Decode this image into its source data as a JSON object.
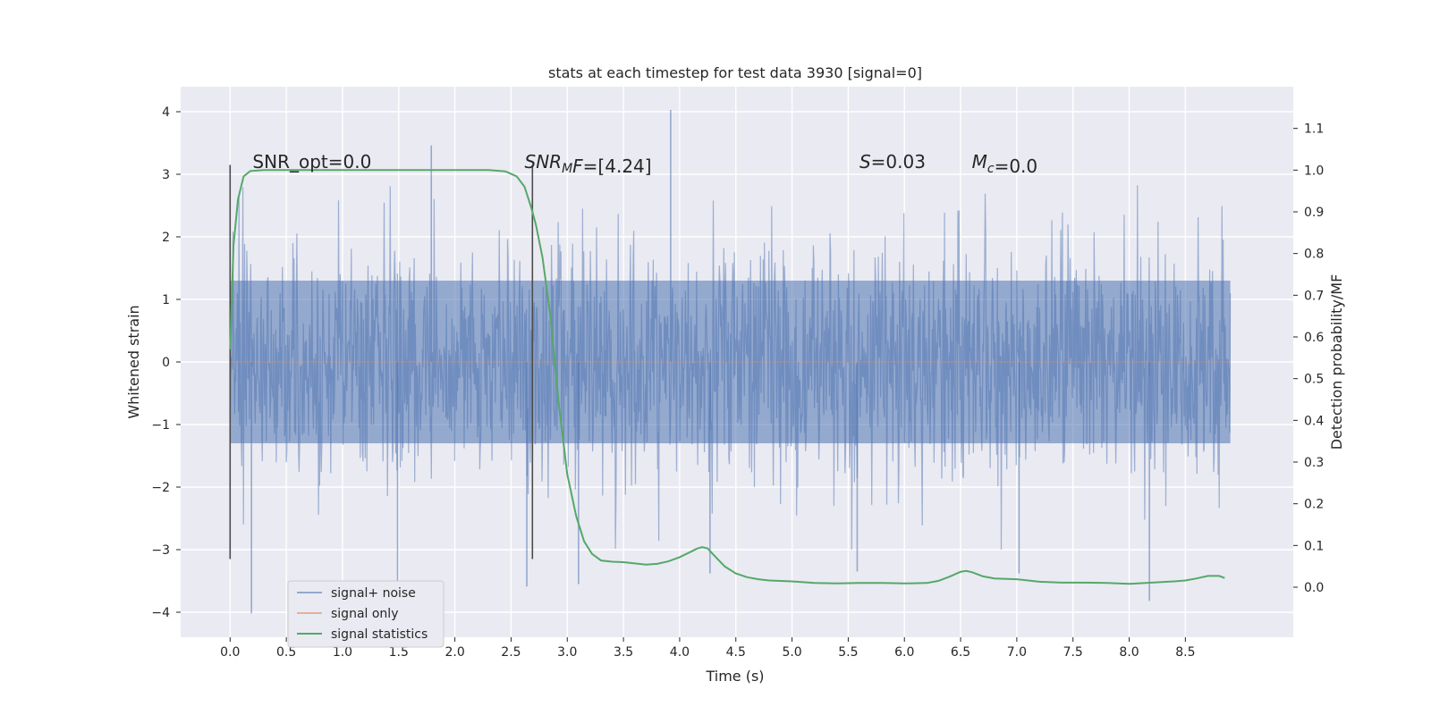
{
  "chart_data": {
    "type": "line",
    "title": "stats at each timestep for test data 3930 [signal=0]",
    "xlabel": "Time (s)",
    "ylabel": "Whitened strain",
    "y2label": "Detection probability/MF",
    "xlim": [
      -0.44,
      9.46
    ],
    "ylim": [
      -4.4,
      4.4
    ],
    "y2lim": [
      -0.12,
      1.2
    ],
    "xticks": [
      0.0,
      0.5,
      1.0,
      1.5,
      2.0,
      2.5,
      3.0,
      3.5,
      4.0,
      4.5,
      5.0,
      5.5,
      6.0,
      6.5,
      7.0,
      7.5,
      8.0,
      8.5
    ],
    "xtick_labels": [
      "0.0",
      "0.5",
      "1.0",
      "1.5",
      "2.0",
      "2.5",
      "3.0",
      "3.5",
      "4.0",
      "4.5",
      "5.0",
      "5.5",
      "6.0",
      "6.5",
      "7.0",
      "7.5",
      "8.0",
      "8.5"
    ],
    "yticks": [
      -4,
      -3,
      -2,
      -1,
      0,
      1,
      2,
      3,
      4
    ],
    "ytick_labels": [
      "−4",
      "−3",
      "−2",
      "−1",
      "0",
      "1",
      "2",
      "3",
      "4"
    ],
    "y2ticks": [
      0.0,
      0.1,
      0.2,
      0.3,
      0.4,
      0.5,
      0.6,
      0.7,
      0.8,
      0.9,
      1.0,
      1.1
    ],
    "y2tick_labels": [
      "0.0",
      "0.1",
      "0.2",
      "0.3",
      "0.4",
      "0.5",
      "0.6",
      "0.7",
      "0.8",
      "0.9",
      "1.0",
      "1.1"
    ],
    "grid": true,
    "legend_placement": "lower-left",
    "annotations": [
      {
        "parts": [
          {
            "t": "SNR_opt=0.0"
          }
        ],
        "x": 0.2,
        "y": 3.2
      },
      {
        "parts": [
          {
            "t": "SNR",
            "i": true
          },
          {
            "t": "M",
            "i": true,
            "sub": true
          },
          {
            "t": "F",
            "i": true
          },
          {
            "t": "=[4.24]"
          }
        ],
        "x": 2.62,
        "y": 3.2
      },
      {
        "parts": [
          {
            "t": "S",
            "i": true
          },
          {
            "t": "=0.03"
          }
        ],
        "x": 5.6,
        "y": 3.2
      },
      {
        "parts": [
          {
            "t": "M",
            "i": true
          },
          {
            "t": "c",
            "i": true,
            "sub": true
          },
          {
            "t": "=0.0"
          }
        ],
        "x": 6.6,
        "y": 3.2
      }
    ],
    "vlines": [
      {
        "x": 0.0,
        "y_from": -3.15,
        "y_to": 3.15,
        "color": "#4c4c4c"
      },
      {
        "x": 2.69,
        "y_from": -3.15,
        "y_to": 3.15,
        "color": "#4c4c4c"
      }
    ],
    "series": [
      {
        "name": "signal+ noise",
        "color": "#4c72b0",
        "kind": "noise",
        "x_start": 0.0,
        "x_end": 8.9,
        "envelope": [
          -1.3,
          1.3
        ],
        "extreme_spikes": [
          [
            1.79,
            3.46
          ],
          [
            3.92,
            4.03
          ],
          [
            3.1,
            -3.55
          ],
          [
            1.49,
            -3.65
          ],
          [
            0.19,
            -4.02
          ],
          [
            8.18,
            -3.82
          ],
          [
            2.64,
            -3.59
          ],
          [
            4.27,
            -3.38
          ],
          [
            5.58,
            -3.35
          ],
          [
            7.02,
            -3.38
          ]
        ]
      },
      {
        "name": "signal only",
        "color": "#dd8452",
        "kind": "flat",
        "x": [
          0.0,
          8.9
        ],
        "y": [
          0.0,
          0.0
        ]
      },
      {
        "name": "signal statistics",
        "color": "#55a868",
        "kind": "line",
        "axis": "right",
        "x": [
          0.0,
          0.03,
          0.07,
          0.12,
          0.18,
          0.3,
          0.5,
          1.0,
          1.5,
          2.0,
          2.3,
          2.45,
          2.55,
          2.62,
          2.68,
          2.72,
          2.78,
          2.85,
          2.92,
          3.0,
          3.08,
          3.15,
          3.22,
          3.3,
          3.4,
          3.5,
          3.6,
          3.7,
          3.8,
          3.9,
          4.0,
          4.1,
          4.15,
          4.2,
          4.25,
          4.3,
          4.4,
          4.5,
          4.6,
          4.7,
          4.8,
          5.0,
          5.2,
          5.4,
          5.6,
          5.8,
          6.0,
          6.2,
          6.3,
          6.4,
          6.5,
          6.55,
          6.6,
          6.7,
          6.8,
          7.0,
          7.2,
          7.4,
          7.6,
          7.8,
          8.0,
          8.2,
          8.4,
          8.5,
          8.6,
          8.7,
          8.8,
          8.85
        ],
        "y": [
          0.57,
          0.82,
          0.93,
          0.985,
          0.998,
          1.0,
          1.0,
          1.0,
          1.0,
          1.0,
          1.0,
          0.997,
          0.985,
          0.96,
          0.91,
          0.87,
          0.79,
          0.65,
          0.45,
          0.27,
          0.17,
          0.11,
          0.08,
          0.064,
          0.061,
          0.06,
          0.057,
          0.054,
          0.056,
          0.062,
          0.072,
          0.085,
          0.092,
          0.096,
          0.093,
          0.078,
          0.05,
          0.033,
          0.024,
          0.019,
          0.016,
          0.014,
          0.01,
          0.009,
          0.01,
          0.01,
          0.009,
          0.01,
          0.015,
          0.025,
          0.037,
          0.039,
          0.036,
          0.026,
          0.021,
          0.019,
          0.013,
          0.011,
          0.011,
          0.01,
          0.008,
          0.011,
          0.014,
          0.016,
          0.021,
          0.027,
          0.027,
          0.022
        ]
      }
    ]
  }
}
